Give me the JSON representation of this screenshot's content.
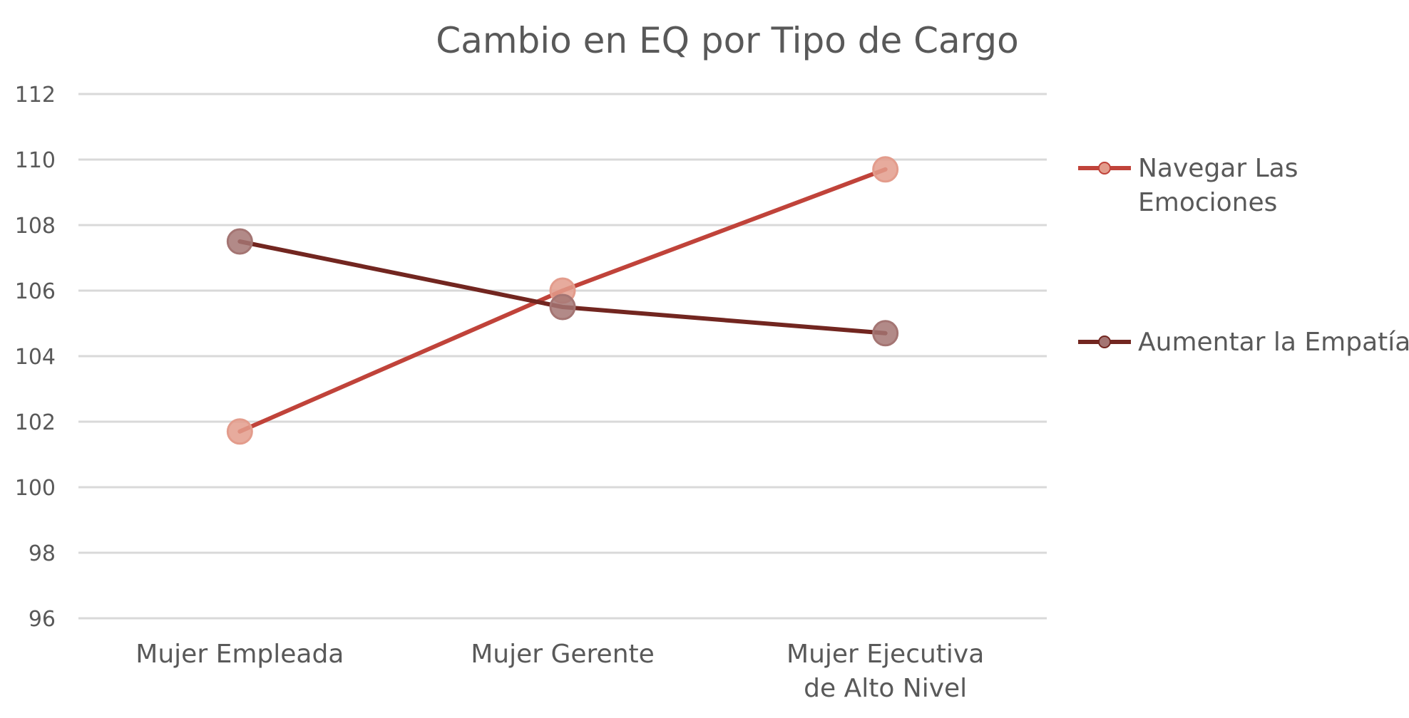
{
  "chart_data": {
    "type": "line",
    "title": "Cambio en EQ por Tipo de Cargo",
    "xlabel": "",
    "ylabel": "",
    "categories": [
      [
        "Mujer Empleada"
      ],
      [
        "Mujer Gerente"
      ],
      [
        "Mujer Ejecutiva",
        "de Alto Nivel"
      ]
    ],
    "ylim": [
      96,
      112
    ],
    "yticks": [
      96,
      98,
      100,
      102,
      104,
      106,
      108,
      110,
      112
    ],
    "ytick_labels": [
      "96",
      "98",
      "100",
      "102",
      "104",
      "106",
      "108",
      "110",
      "112"
    ],
    "grid": true,
    "legend_position": "right",
    "series": [
      {
        "name": "Navegar Las Emociones",
        "name_lines": [
          "Navegar Las",
          "Emociones"
        ],
        "values": [
          101.7,
          106.0,
          109.7
        ],
        "color": "#c0433a",
        "marker_color": "#e39c8c"
      },
      {
        "name": "Aumentar la Empatía",
        "name_lines": [
          "Aumentar la Empatía"
        ],
        "values": [
          107.5,
          105.5,
          104.7
        ],
        "color": "#722620",
        "marker_color": "#a47573"
      }
    ]
  }
}
